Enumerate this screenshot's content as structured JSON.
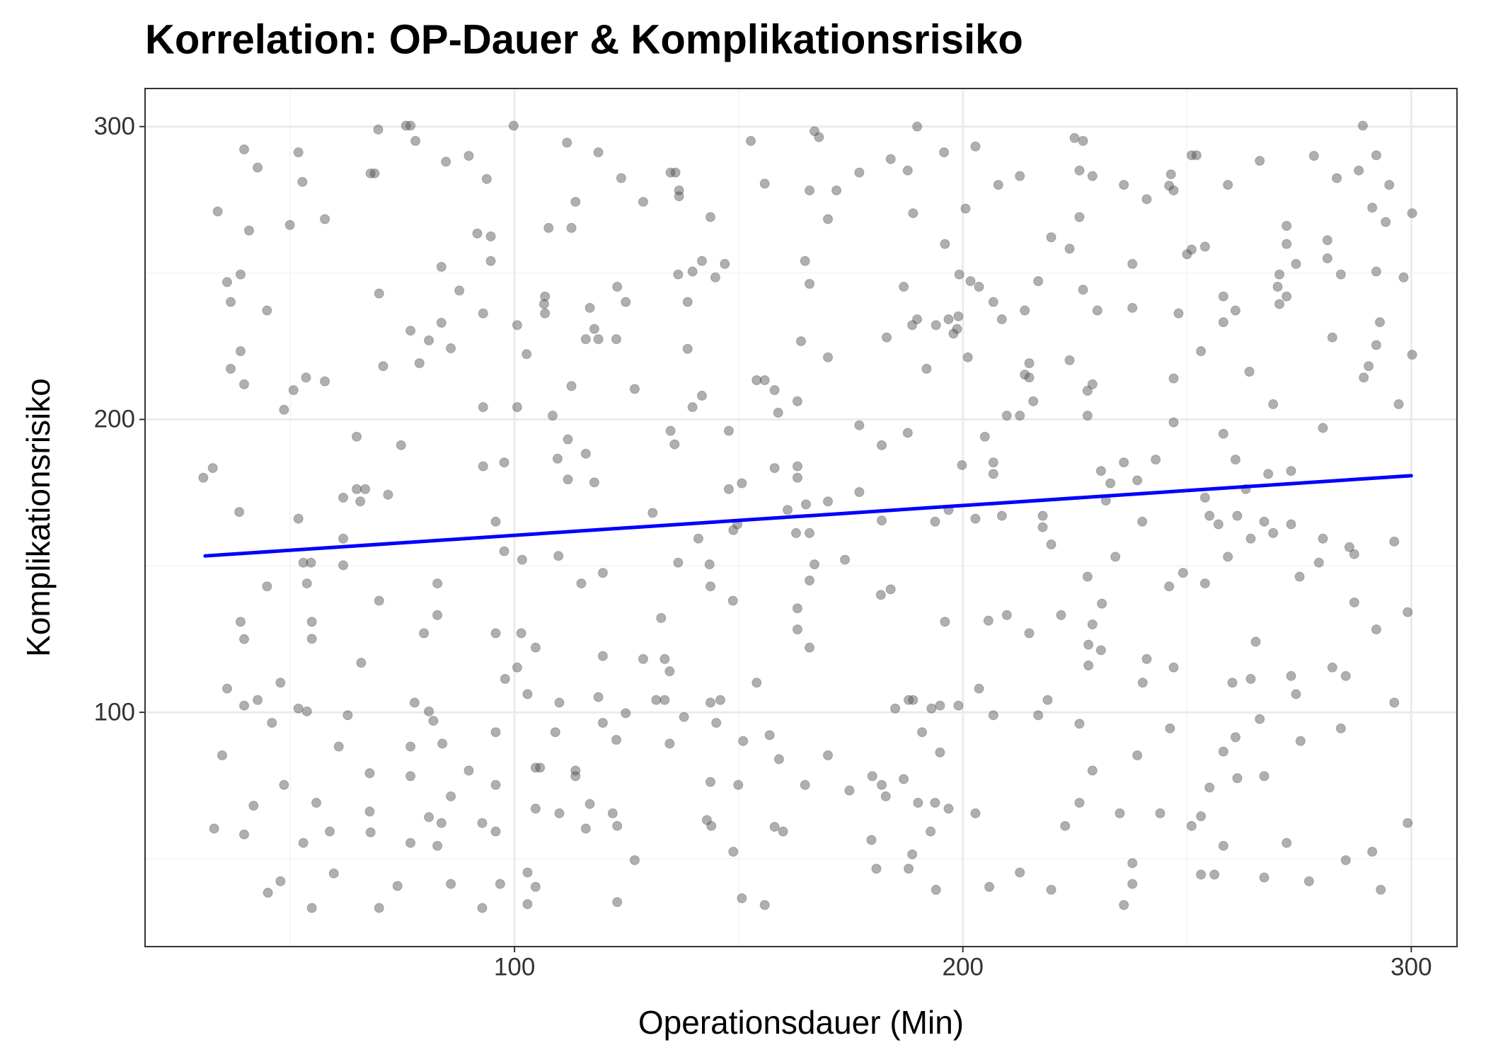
{
  "chart_data": {
    "type": "scatter",
    "title": "Korrelation: OP-Dauer & Komplikationsrisiko",
    "x_label": "Operationsdauer (Min)",
    "y_label": "Komplikationsrisiko",
    "xlim": [
      17.6,
      310.2
    ],
    "ylim": [
      20,
      313
    ],
    "xticks": [
      100,
      200,
      300
    ],
    "yticks": [
      100,
      200,
      300
    ],
    "x_minor_ticks": [
      50,
      150,
      250
    ],
    "y_minor_ticks": [
      50,
      150,
      250
    ],
    "grid": true,
    "color": "#4d4d4d",
    "x": [
      30.6,
      32.7,
      33.8,
      33,
      34.8,
      35.9,
      35.9,
      36.7,
      36.7,
      38.9,
      38.9,
      38.6,
      38.9,
      39.7,
      39.7,
      39.7,
      39.7,
      39.7,
      40.8,
      41.8,
      42.7,
      42.7,
      44.8,
      44.8,
      45,
      45.9,
      47.8,
      47.8,
      48.6,
      48.6,
      49.9,
      50.7,
      51.8,
      51.8,
      51.8,
      52.7,
      52.9,
      52.9,
      53.5,
      53.7,
      53.7,
      54.6,
      54.8,
      54.8,
      54.8,
      55.8,
      57.7,
      57.7,
      58.8,
      59.7,
      60.8,
      61.8,
      61.8,
      61.8,
      62.8,
      64.8,
      64.8,
      65.6,
      65.8,
      66.7,
      67.7,
      67.7,
      67.9,
      67.9,
      68.8,
      69.6,
      69.8,
      69.8,
      69.8,
      70.7,
      71.8,
      73.9,
      74.7,
      75.8,
      76.8,
      76.8,
      76.8,
      76.8,
      76.8,
      77.7,
      77.9,
      78.8,
      79.8,
      80.9,
      80.9,
      80.9,
      81.9,
      82.8,
      82.8,
      82.8,
      83.7,
      83.7,
      83.7,
      83.9,
      84.7,
      85.8,
      85.8,
      85.8,
      87.7,
      89.8,
      89.8,
      91.7,
      92.8,
      92.8,
      93,
      93,
      93,
      93.8,
      94.7,
      94.7,
      95.8,
      95.8,
      95.8,
      95.8,
      95.8,
      96.8,
      97.7,
      97.7,
      97.9,
      99.8,
      100.6,
      100.6,
      100.6,
      101.5,
      101.7,
      102.7,
      102.9,
      102.9,
      102.9,
      104.7,
      104.7,
      104.7,
      104.7,
      105.7,
      106.6,
      106.8,
      106.8,
      107.6,
      108.5,
      109.1,
      109.6,
      109.8,
      110,
      110,
      111.7,
      111.9,
      111.9,
      112.7,
      112.7,
      113.6,
      113.6,
      113.6,
      114.9,
      115.9,
      115.9,
      115.9,
      116.8,
      116.8,
      117.8,
      117.8,
      118.7,
      118.7,
      118.7,
      119.7,
      119.7,
      119.7,
      121.9,
      122.7,
      122.7,
      122.9,
      122.9,
      123.8,
      122.9,
      124.8,
      124.8,
      126.8,
      126.8,
      128.7,
      128.7,
      130.8,
      131.6,
      132.7,
      133.5,
      133.5,
      134.6,
      134.6,
      134.8,
      134.8,
      135.7,
      135.9,
      136.5,
      136.5,
      136.7,
      136.7,
      137.8,
      138.6,
      138.6,
      139.7,
      139.7,
      141,
      141.8,
      141.8,
      142.9,
      143.5,
      143.7,
      143.7,
      143.7,
      143.7,
      143.9,
      144.8,
      145,
      145.9,
      146.9,
      147.8,
      147.8,
      148.7,
      148.8,
      148.8,
      149.7,
      149.9,
      150.7,
      150.7,
      151,
      152.7,
      154,
      154,
      155.8,
      155.8,
      155.8,
      156.9,
      158,
      158,
      158,
      158.8,
      159,
      159.9,
      160.9,
      162.8,
      163.1,
      163.1,
      163.1,
      163.1,
      163.1,
      163.9,
      164.8,
      164.8,
      165,
      165.8,
      165.8,
      165.8,
      165.8,
      165.8,
      166.9,
      166.9,
      167.9,
      169.9,
      169.9,
      169.9,
      169.9,
      171.8,
      173.7,
      174.7,
      176.9,
      176.9,
      176.9,
      179.6,
      179.8,
      180.7,
      181.7,
      181.9,
      181.9,
      181.9,
      182.8,
      183,
      183.9,
      183.9,
      184.9,
      186.8,
      186.8,
      187.7,
      187.7,
      187.9,
      187.9,
      188.7,
      188.7,
      188.9,
      188.9,
      189.8,
      189.8,
      190,
      190.9,
      191.9,
      192.8,
      193,
      193.8,
      193.8,
      194,
      194,
      194.9,
      194.9,
      195.8,
      196,
      196,
      196.8,
      196.8,
      196.8,
      197.9,
      198.7,
      199,
      199,
      199.2,
      199.8,
      200.6,
      201.1,
      201.7,
      202.8,
      202.8,
      202.8,
      203.6,
      203.6,
      204.9,
      205.7,
      205.9,
      206.8,
      206.8,
      206.8,
      206.8,
      207.9,
      208.7,
      208.7,
      209.8,
      209.8,
      212.7,
      212.7,
      212.7,
      213.8,
      213.8,
      214.8,
      214.8,
      214.8,
      215.7,
      216.8,
      216.8,
      217.8,
      217.8,
      218.9,
      219.7,
      219.7,
      219.7,
      221.9,
      222.8,
      223.8,
      223.8,
      224.9,
      226,
      226,
      226,
      226,
      226.8,
      226.8,
      227.8,
      227.8,
      227.8,
      228,
      228,
      228.9,
      228.9,
      228.9,
      228.9,
      230,
      230.8,
      230.8,
      231,
      231.9,
      232.9,
      234,
      235,
      235.9,
      235.9,
      235.9,
      237.8,
      237.8,
      237.8,
      237.8,
      238.9,
      238.9,
      240,
      240.1,
      241,
      241,
      243,
      244,
      246,
      246,
      246.2,
      246.4,
      247,
      247,
      247,
      247,
      248.1,
      249.1,
      250,
      251,
      251,
      251,
      252.1,
      253.1,
      253.1,
      253.1,
      254,
      254,
      254,
      255,
      255,
      256.1,
      257,
      258.1,
      258.1,
      258.1,
      258.1,
      258.1,
      259.1,
      259.1,
      260.1,
      260.8,
      260.8,
      260.8,
      261.2,
      261.2,
      263.1,
      263.9,
      264.2,
      264.2,
      265.3,
      266.2,
      266.2,
      267.2,
      267.2,
      267.2,
      268.1,
      269.2,
      269.2,
      270.2,
      270.6,
      270.6,
      272.2,
      272.2,
      272.2,
      272.2,
      273.2,
      273.2,
      273.2,
      274.3,
      274.3,
      275.1,
      275.3,
      277.2,
      278.3,
      279.4,
      280.3,
      280.3,
      281.3,
      281.3,
      282.4,
      282.4,
      283.4,
      284.3,
      284.3,
      285.4,
      285.4,
      286.2,
      287.3,
      287.3,
      288.3,
      289.2,
      289.4,
      290.5,
      291.3,
      291.3,
      292.2,
      292.2,
      292.2,
      292.2,
      293,
      293.2,
      294.3,
      295.1,
      296.2,
      296.2,
      297.2,
      298.3,
      299.2,
      299.2,
      300.2,
      300.2
    ],
    "values": [
      180.1,
      183.4,
      271,
      60.3,
      85.3,
      246.9,
      108.1,
      240.1,
      217.3,
      249.5,
      223.3,
      168.4,
      130.9,
      292.2,
      212,
      125,
      102.3,
      58.3,
      264.5,
      68.1,
      286,
      104.2,
      237.2,
      143,
      38.4,
      96.4,
      110.1,
      42.3,
      203.3,
      75.2,
      266.4,
      210,
      291.2,
      166.1,
      101.3,
      281.1,
      151.1,
      55.4,
      214.3,
      144,
      100.3,
      151.1,
      130.9,
      125.1,
      33.2,
      69.1,
      268.4,
      213,
      59.3,
      45,
      88.3,
      173.3,
      159.3,
      150.2,
      99,
      194.1,
      176.2,
      172,
      116.9,
      176.2,
      79.2,
      66.1,
      59,
      284,
      284,
      299,
      243,
      138.1,
      33.2,
      218.2,
      174.3,
      40.7,
      191.2,
      300.3,
      300.3,
      230.3,
      88.3,
      78.2,
      55.4,
      103.3,
      295.1,
      219.2,
      127,
      227,
      100.3,
      64.2,
      97.1,
      54.4,
      144,
      133.2,
      233,
      252.1,
      62.2,
      89.3,
      288,
      224.3,
      71.3,
      41.4,
      244,
      290,
      80.1,
      263.5,
      62.2,
      33.2,
      236.2,
      204.2,
      184,
      282.1,
      262.5,
      254.1,
      165.1,
      127,
      93.2,
      75.2,
      59.3,
      41.4,
      185.3,
      155,
      111.4,
      300.3,
      232.2,
      204.2,
      115.3,
      127,
      152.1,
      222.3,
      106.2,
      45.3,
      34.5,
      122.1,
      81.1,
      67.1,
      40.4,
      81.1,
      239.4,
      242,
      236.2,
      265.4,
      201.3,
      93.2,
      186.6,
      153.4,
      103.3,
      65.5,
      294.5,
      193.2,
      179.5,
      265.4,
      211.4,
      274.3,
      80.1,
      78.2,
      144,
      227.4,
      188.3,
      60.3,
      238.1,
      68.7,
      230.9,
      178.5,
      227.4,
      291.2,
      105.2,
      147.6,
      119.2,
      96.4,
      65.5,
      227.4,
      90.6,
      245.3,
      35.2,
      282.4,
      61.2,
      240.1,
      99.7,
      210.4,
      49.5,
      274.3,
      118.2,
      168.1,
      104.2,
      132.2,
      118.2,
      104.2,
      89.3,
      114,
      284.3,
      196.1,
      191.5,
      284.3,
      249.5,
      151.1,
      278.2,
      276.2,
      98.4,
      240.1,
      224.1,
      250.5,
      204.2,
      159.3,
      208.1,
      254.1,
      63.2,
      150.5,
      269.1,
      143,
      103.3,
      76.2,
      61.2,
      248.5,
      96.4,
      104.2,
      253.1,
      196.1,
      176.2,
      138.1,
      162.2,
      52.4,
      164.2,
      75.2,
      178.2,
      36.5,
      90.2,
      295.1,
      213.4,
      110.1,
      213.4,
      280.5,
      34.2,
      92.2,
      210,
      60.9,
      183.4,
      202.3,
      84,
      59.3,
      169.1,
      161.2,
      206.2,
      184,
      180.1,
      135.5,
      128.3,
      226.7,
      254.1,
      75.2,
      171,
      278.2,
      246.3,
      161.2,
      145,
      122.1,
      298.4,
      150.5,
      296.4,
      268.4,
      221.2,
      172,
      85.3,
      278.2,
      152.1,
      73.3,
      284.3,
      175.2,
      198,
      56.4,
      78.2,
      46.6,
      140.1,
      191.2,
      165.5,
      75.2,
      71.3,
      228,
      142,
      288.9,
      101.3,
      245.3,
      77.2,
      195.4,
      285,
      104.2,
      46.6,
      232.2,
      51.5,
      270.4,
      104.2,
      234.2,
      300,
      69.1,
      93.2,
      217.3,
      59.3,
      101.3,
      69.1,
      165.1,
      232.2,
      39.4,
      102.3,
      86.3,
      291.2,
      259.9,
      130.9,
      234.2,
      169.1,
      67.1,
      229.3,
      230.9,
      235.2,
      102.3,
      249.5,
      184.4,
      272,
      221.2,
      247.2,
      293.2,
      166.1,
      65.5,
      245.3,
      108.1,
      194.1,
      131.3,
      40.4,
      240.1,
      185.3,
      181.4,
      99,
      280.1,
      234.2,
      167.1,
      201.3,
      133.2,
      45.3,
      283.1,
      201.3,
      237.2,
      215.3,
      219.2,
      214.3,
      127,
      206.2,
      247.2,
      99,
      167.1,
      163.2,
      104.2,
      157.3,
      262.2,
      39.4,
      133.2,
      61.2,
      258.3,
      220.2,
      296.1,
      285,
      269.1,
      96.1,
      69.1,
      295.1,
      244.3,
      209.8,
      201.3,
      146.3,
      123.1,
      116,
      283.1,
      212,
      130,
      80.1,
      237.2,
      182.4,
      121.2,
      137.1,
      172.3,
      178.2,
      153.1,
      65.5,
      280.1,
      185.3,
      34.2,
      253.1,
      238.1,
      48.5,
      41.4,
      179.2,
      85.3,
      165.1,
      110.1,
      275.2,
      118.2,
      186.3,
      65.5,
      143,
      279.8,
      94.5,
      283.7,
      278.2,
      199,
      214,
      115.3,
      236.2,
      147.6,
      256.4,
      258,
      290.2,
      61.2,
      290.2,
      223.3,
      44.6,
      64.5,
      259,
      173.3,
      144,
      167.1,
      74.3,
      44.6,
      164.2,
      242,
      233.2,
      195.1,
      86.6,
      54.4,
      280.1,
      153.1,
      110.1,
      237.2,
      186.3,
      91.5,
      167.1,
      77.5,
      176.2,
      216.3,
      159.3,
      111.4,
      124.1,
      288.3,
      97.7,
      165.1,
      78.2,
      43.6,
      181.4,
      161.2,
      205.2,
      245.3,
      249.5,
      239.4,
      266.1,
      242,
      259.9,
      55.4,
      182.4,
      164.2,
      112.4,
      253.1,
      106.2,
      146.3,
      90.2,
      42.3,
      290,
      151.1,
      159.3,
      197.1,
      255,
      261.2,
      115.3,
      228,
      282.4,
      249.5,
      94.5,
      112.4,
      49.5,
      156.4,
      154,
      137.5,
      285,
      300.3,
      214.3,
      218.2,
      272.3,
      52.4,
      290.2,
      225.4,
      250.5,
      128.3,
      233.2,
      39.4,
      267.4,
      280.1,
      158.3,
      103.3,
      205.2,
      248.5,
      134.2,
      62.2,
      270.4,
      222.1
    ],
    "trend_line": {
      "x": [
        31,
        300
      ],
      "values": [
        153.4,
        180.8
      ],
      "color": "#0000ff"
    }
  }
}
